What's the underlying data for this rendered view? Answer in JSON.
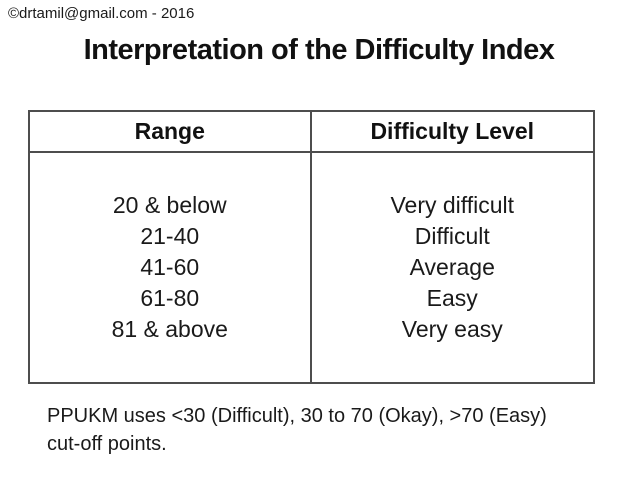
{
  "slide": {
    "copyright": "©drtamil@gmail.com - 2016",
    "title": "Interpretation of the Difficulty Index"
  },
  "table": {
    "headers": {
      "range": "Range",
      "level": "Difficulty Level"
    },
    "rows": [
      {
        "range": "20 & below",
        "level": "Very difficult"
      },
      {
        "range": "21-40",
        "level": "Difficult"
      },
      {
        "range": "41-60",
        "level": "Average"
      },
      {
        "range": "61-80",
        "level": "Easy"
      },
      {
        "range": "81 & above",
        "level": "Very easy"
      }
    ]
  },
  "footnote": {
    "line1": "PPUKM uses <30 (Difficult), 30 to 70 (Okay), >70 (Easy)",
    "line2": "cut-off points."
  },
  "colors": {
    "background": "#ffffff",
    "text": "#1a1a1a",
    "table_border": "#4d4d4d"
  }
}
